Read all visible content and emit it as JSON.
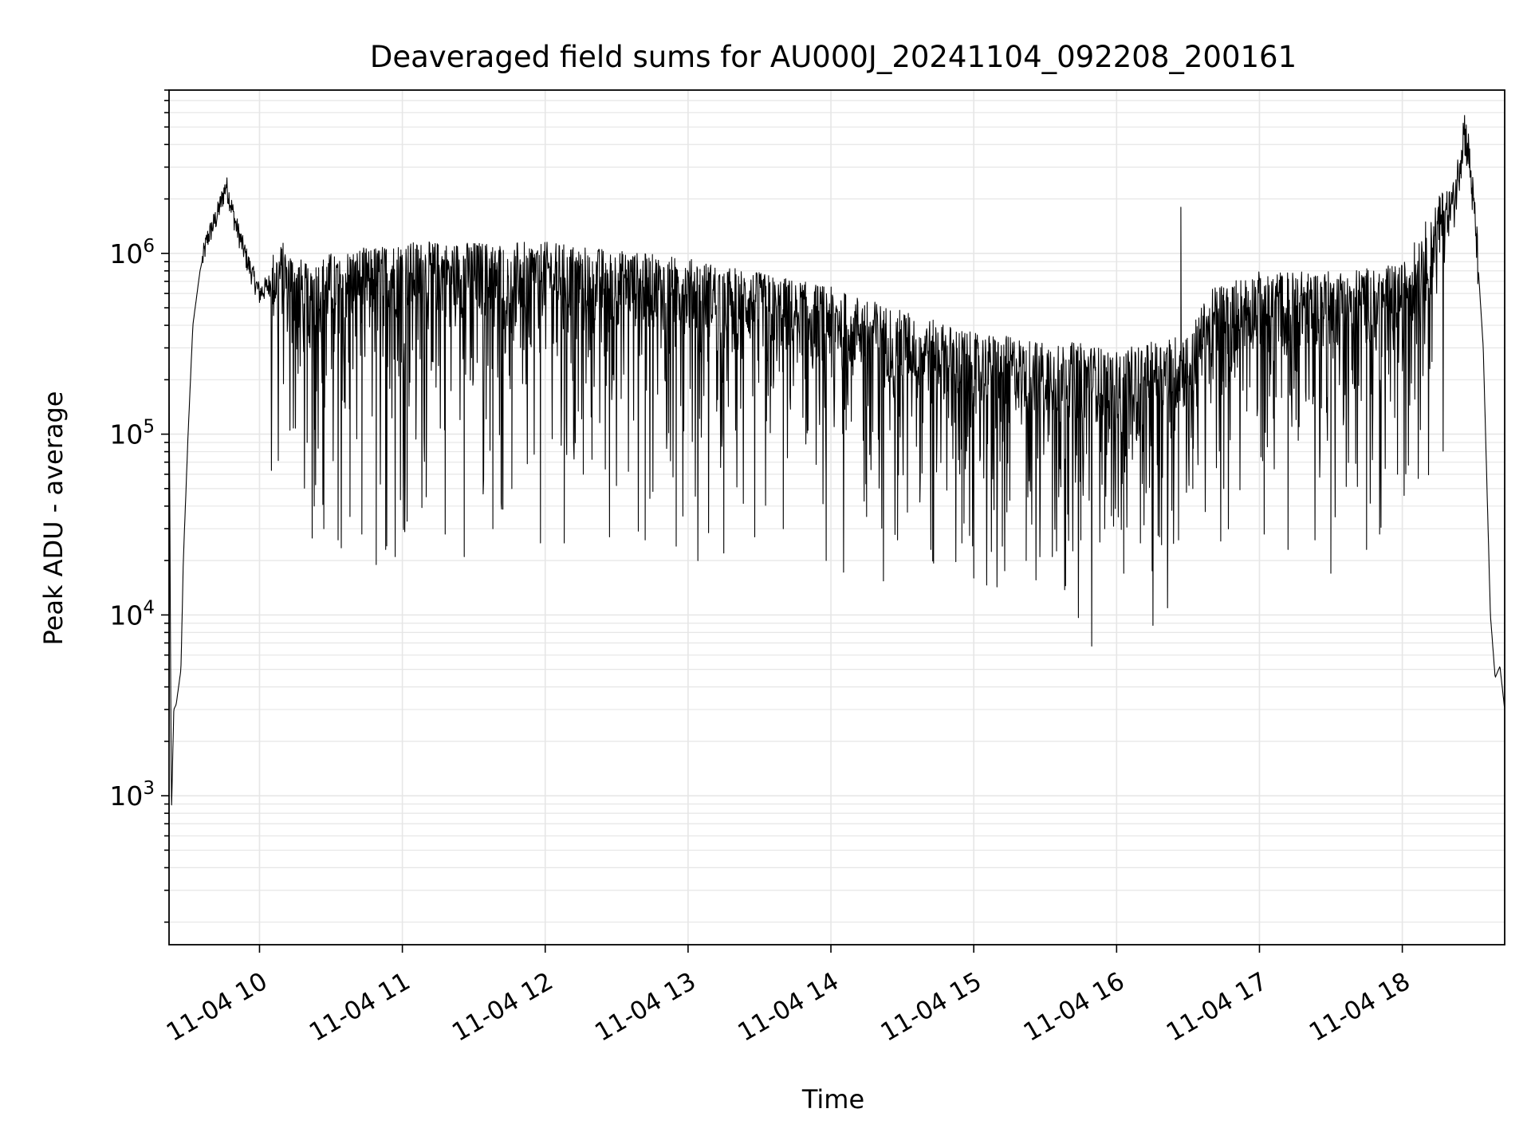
{
  "chart_data": {
    "type": "line",
    "title": "Deaveraged field sums for AU000J_20241104_092208_200161",
    "xlabel": "Time",
    "ylabel": "Peak ADU - average",
    "yscale": "log",
    "ylim": [
      150,
      8000000
    ],
    "xlim": [
      "2024-11-04 09:22",
      "2024-11-04 18:43"
    ],
    "grid": true,
    "line_color": "#000000",
    "x_ticks": [
      {
        "value": "2024-11-04 10:00",
        "label": "11-04 10"
      },
      {
        "value": "2024-11-04 11:00",
        "label": "11-04 11"
      },
      {
        "value": "2024-11-04 12:00",
        "label": "11-04 12"
      },
      {
        "value": "2024-11-04 13:00",
        "label": "11-04 13"
      },
      {
        "value": "2024-11-04 14:00",
        "label": "11-04 14"
      },
      {
        "value": "2024-11-04 15:00",
        "label": "11-04 15"
      },
      {
        "value": "2024-11-04 16:00",
        "label": "11-04 16"
      },
      {
        "value": "2024-11-04 17:00",
        "label": "11-04 17"
      },
      {
        "value": "2024-11-04 18:00",
        "label": "11-04 18"
      }
    ],
    "y_ticks": [
      {
        "value": 1000,
        "base": "10",
        "exp": "3"
      },
      {
        "value": 10000,
        "base": "10",
        "exp": "4"
      },
      {
        "value": 100000,
        "base": "10",
        "exp": "5"
      },
      {
        "value": 1000000,
        "base": "10",
        "exp": "6"
      }
    ],
    "series": [
      {
        "values": [
          [
            "2024-11-04 09:22",
            230000
          ],
          [
            "2024-11-04 09:23",
            800
          ],
          [
            "2024-11-04 09:24",
            3000
          ],
          [
            "2024-11-04 09:25",
            3200
          ],
          [
            "2024-11-04 09:27",
            5000
          ],
          [
            "2024-11-04 09:28",
            20000
          ],
          [
            "2024-11-04 09:30",
            100000
          ],
          [
            "2024-11-04 09:32",
            400000
          ],
          [
            "2024-11-04 09:35",
            800000
          ],
          [
            "2024-11-04 09:38",
            1200000
          ],
          [
            "2024-11-04 09:42",
            1600000
          ],
          [
            "2024-11-04 09:46",
            2400000
          ],
          [
            "2024-11-04 09:50",
            1450000
          ],
          [
            "2024-11-04 09:55",
            900000
          ],
          [
            "2024-11-04 10:00",
            600000
          ],
          [
            "2024-11-04 10:10",
            800000
          ],
          [
            "2024-11-04 10:20",
            600000
          ],
          [
            "2024-11-04 10:30",
            700000
          ],
          [
            "2024-11-04 11:00",
            800000
          ],
          [
            "2024-11-04 12:00",
            800000
          ],
          [
            "2024-11-04 13:00",
            650000
          ],
          [
            "2024-11-04 14:00",
            450000
          ],
          [
            "2024-11-04 15:00",
            250000
          ],
          [
            "2024-11-04 15:45",
            220000
          ],
          [
            "2024-11-04 16:00",
            200000
          ],
          [
            "2024-11-04 16:30",
            250000
          ],
          [
            "2024-11-04 16:40",
            450000
          ],
          [
            "2024-11-04 17:00",
            550000
          ],
          [
            "2024-11-04 17:30",
            550000
          ],
          [
            "2024-11-04 18:00",
            600000
          ],
          [
            "2024-11-04 18:15",
            1400000
          ],
          [
            "2024-11-04 18:22",
            2000000
          ],
          [
            "2024-11-04 18:26",
            5000000
          ],
          [
            "2024-11-04 18:28",
            3500000
          ],
          [
            "2024-11-04 18:31",
            1300000
          ],
          [
            "2024-11-04 18:34",
            300000
          ],
          [
            "2024-11-04 18:37",
            10000
          ],
          [
            "2024-11-04 18:39",
            4500
          ],
          [
            "2024-11-04 18:41",
            5200
          ],
          [
            "2024-11-04 18:43",
            3000
          ]
        ],
        "dips": [
          [
            "2024-11-04 10:20",
            90000
          ],
          [
            "2024-11-04 10:23",
            40000
          ],
          [
            "2024-11-04 10:27",
            30000
          ],
          [
            "2024-11-04 10:33",
            26000
          ],
          [
            "2024-11-04 10:38",
            35000
          ],
          [
            "2024-11-04 10:43",
            28000
          ],
          [
            "2024-11-04 10:49",
            19000
          ],
          [
            "2024-11-04 10:53",
            23000
          ],
          [
            "2024-11-04 10:57",
            21000
          ],
          [
            "2024-11-04 11:02",
            33000
          ],
          [
            "2024-11-04 11:10",
            45000
          ],
          [
            "2024-11-04 11:18",
            28000
          ],
          [
            "2024-11-04 11:26",
            21000
          ],
          [
            "2024-11-04 11:38",
            30000
          ],
          [
            "2024-11-04 11:46",
            50000
          ],
          [
            "2024-11-04 11:58",
            25000
          ],
          [
            "2024-11-04 12:08",
            25000
          ],
          [
            "2024-11-04 12:16",
            60000
          ],
          [
            "2024-11-04 12:27",
            27000
          ],
          [
            "2024-11-04 12:42",
            26000
          ],
          [
            "2024-11-04 12:55",
            24000
          ],
          [
            "2024-11-04 13:15",
            22000
          ],
          [
            "2024-11-04 13:28",
            27000
          ],
          [
            "2024-11-04 13:40",
            30000
          ],
          [
            "2024-11-04 13:58",
            20000
          ],
          [
            "2024-11-04 14:15",
            35000
          ],
          [
            "2024-11-04 14:28",
            26000
          ],
          [
            "2024-11-04 14:42",
            23000
          ],
          [
            "2024-11-04 14:55",
            25000
          ],
          [
            "2024-11-04 15:00",
            16000
          ],
          [
            "2024-11-04 15:12",
            24000
          ],
          [
            "2024-11-04 15:22",
            20000
          ],
          [
            "2024-11-04 15:33",
            21000
          ],
          [
            "2024-11-04 15:45",
            26000
          ],
          [
            "2024-11-04 15:55",
            30000
          ],
          [
            "2024-11-04 16:03",
            17000
          ],
          [
            "2024-11-04 16:10",
            25000
          ],
          [
            "2024-11-04 16:18",
            27000
          ],
          [
            "2024-11-04 16:26",
            26000
          ],
          [
            "2024-11-04 16:32",
            50000
          ],
          [
            "2024-11-04 16:45",
            50000
          ],
          [
            "2024-11-04 17:02",
            28000
          ],
          [
            "2024-11-04 17:12",
            23000
          ],
          [
            "2024-11-04 17:30",
            17000
          ],
          [
            "2024-11-04 17:45",
            23000
          ],
          [
            "2024-11-04 17:58",
            60000
          ]
        ],
        "spikes": [
          [
            "2024-11-04 16:27",
            1800000
          ],
          [
            "2024-11-04 09:46",
            2400000
          ]
        ]
      }
    ]
  }
}
